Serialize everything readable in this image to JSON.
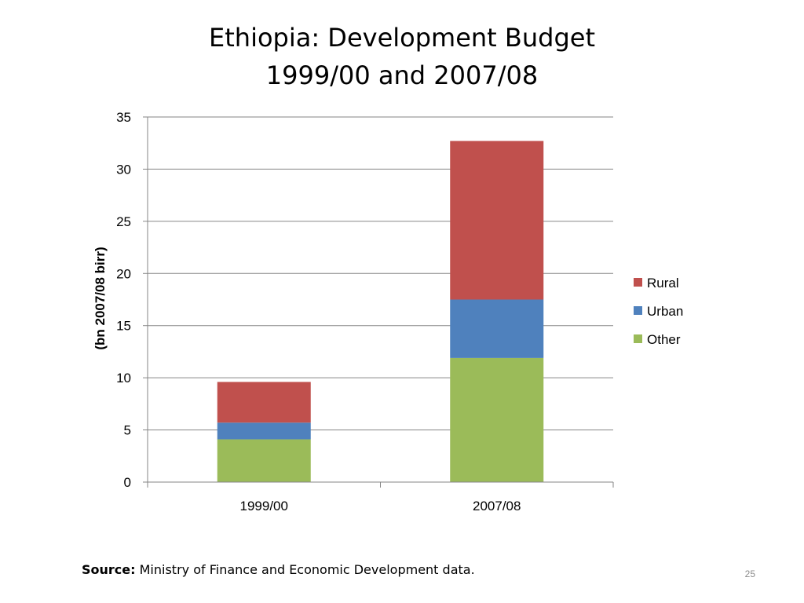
{
  "slide": {
    "title_line1": "Ethiopia: Development Budget",
    "title_line2": "1999/00 and 2007/08",
    "source_label": "Source:",
    "source_text": "Ministry of Finance and Economic Development data.",
    "page_number": "25"
  },
  "colors": {
    "rural": "#C0504D",
    "urban": "#4F81BD",
    "other": "#9BBB59",
    "gridline": "#868686",
    "axis": "#868686"
  },
  "chart_data": {
    "type": "bar",
    "stacked": true,
    "title": "Ethiopia: Development Budget 1999/00 and 2007/08",
    "xlabel": "",
    "ylabel": "(bn 2007/08 birr)",
    "categories": [
      "1999/00",
      "2007/08"
    ],
    "series": [
      {
        "name": "Other",
        "color": "#9BBB59",
        "values": [
          4.1,
          11.9
        ]
      },
      {
        "name": "Urban",
        "color": "#4F81BD",
        "values": [
          1.6,
          5.6
        ]
      },
      {
        "name": "Rural",
        "color": "#C0504D",
        "values": [
          3.9,
          15.2
        ]
      }
    ],
    "legend_order": [
      "Rural",
      "Urban",
      "Other"
    ],
    "ylim": [
      0,
      35
    ],
    "yticks": [
      0,
      5,
      10,
      15,
      20,
      25,
      30,
      35
    ],
    "grid": true,
    "legend_position": "right"
  }
}
